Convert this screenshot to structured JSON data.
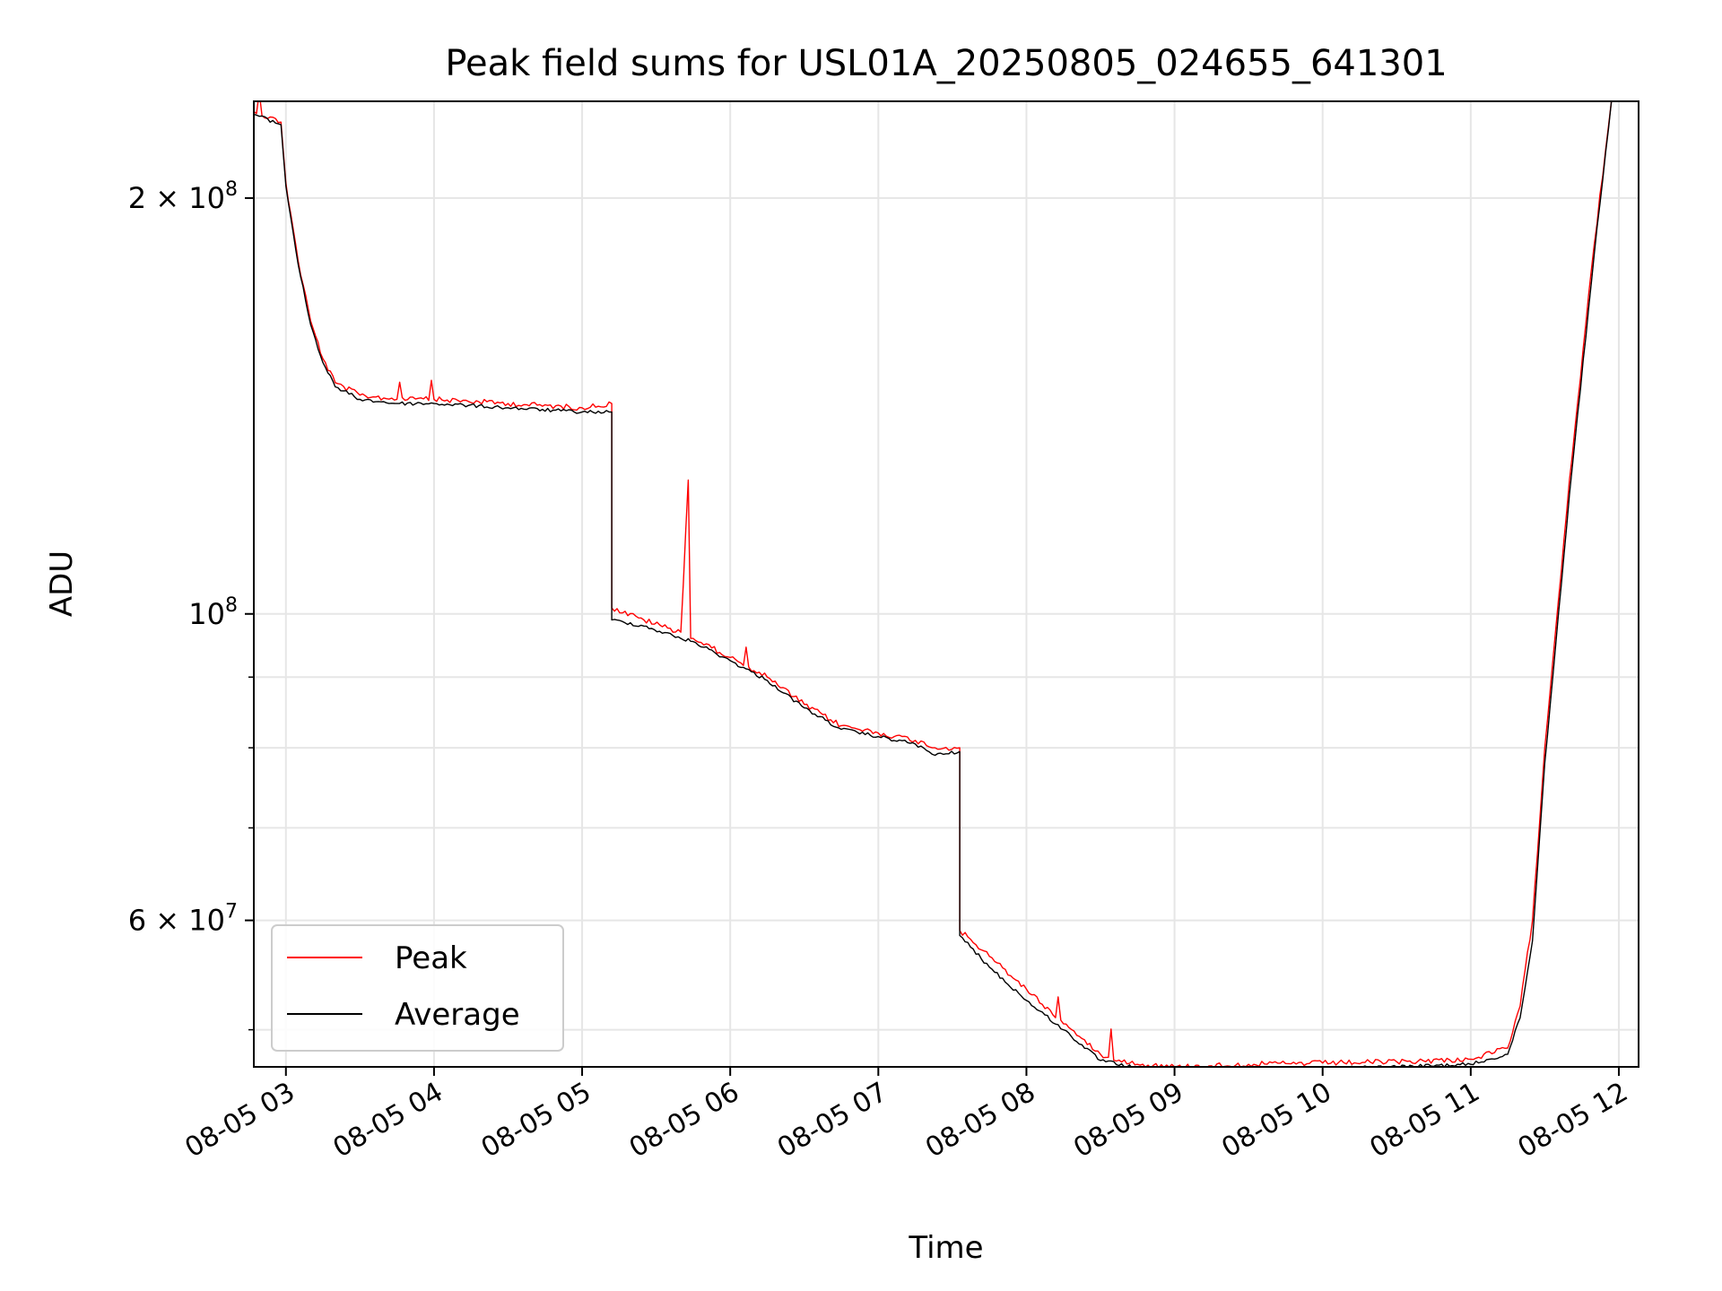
{
  "chart_data": {
    "type": "line",
    "title": "Peak field sums for USL01A_20250805_024655_641301",
    "xlabel": "Time",
    "ylabel": "ADU",
    "yscale": "log",
    "ylim": [
      47000000,
      235000000
    ],
    "xlim": [
      "2025-08-05 02:47",
      "2025-08-05 12:08"
    ],
    "grid": true,
    "legend_position": "lower-left",
    "x_ticks": [
      {
        "value": "2025-08-05 03:00",
        "label": "08-05 03"
      },
      {
        "value": "2025-08-05 04:00",
        "label": "08-05 04"
      },
      {
        "value": "2025-08-05 05:00",
        "label": "08-05 05"
      },
      {
        "value": "2025-08-05 06:00",
        "label": "08-05 06"
      },
      {
        "value": "2025-08-05 07:00",
        "label": "08-05 07"
      },
      {
        "value": "2025-08-05 08:00",
        "label": "08-05 08"
      },
      {
        "value": "2025-08-05 09:00",
        "label": "08-05 09"
      },
      {
        "value": "2025-08-05 10:00",
        "label": "08-05 10"
      },
      {
        "value": "2025-08-05 11:00",
        "label": "08-05 11"
      },
      {
        "value": "2025-08-05 12:00",
        "label": "08-05 12"
      }
    ],
    "y_major_ticks": [
      {
        "value": 60000000,
        "mantissa": "6",
        "exp": "7"
      },
      {
        "value": 100000000,
        "mantissa": "",
        "exp": "8"
      },
      {
        "value": 200000000,
        "mantissa": "2",
        "exp": "8"
      }
    ],
    "y_minor_ticks": [
      50000000,
      70000000,
      80000000,
      90000000
    ],
    "series": [
      {
        "name": "Peak",
        "color": "#ff0000",
        "x": [
          "2025-08-05 02:47",
          "2025-08-05 02:58",
          "2025-08-05 03:00",
          "2025-08-05 03:05",
          "2025-08-05 03:10",
          "2025-08-05 03:15",
          "2025-08-05 03:20",
          "2025-08-05 03:30",
          "2025-08-05 03:45",
          "2025-08-05 04:00",
          "2025-08-05 04:30",
          "2025-08-05 05:00",
          "2025-08-05 05:12",
          "2025-08-05 05:12",
          "2025-08-05 05:25",
          "2025-08-05 05:40",
          "2025-08-05 05:43",
          "2025-08-05 05:44",
          "2025-08-05 05:45",
          "2025-08-05 06:00",
          "2025-08-05 06:15",
          "2025-08-05 06:30",
          "2025-08-05 06:45",
          "2025-08-05 07:00",
          "2025-08-05 07:15",
          "2025-08-05 07:23",
          "2025-08-05 07:33",
          "2025-08-05 07:33",
          "2025-08-05 07:45",
          "2025-08-05 08:00",
          "2025-08-05 08:15",
          "2025-08-05 08:30",
          "2025-08-05 08:45",
          "2025-08-05 09:00",
          "2025-08-05 09:30",
          "2025-08-05 10:00",
          "2025-08-05 10:30",
          "2025-08-05 11:00",
          "2025-08-05 11:15",
          "2025-08-05 11:20",
          "2025-08-05 11:25",
          "2025-08-05 11:30",
          "2025-08-05 11:40",
          "2025-08-05 11:50",
          "2025-08-05 11:57"
        ],
        "values": [
          231000000,
          227000000,
          205000000,
          180000000,
          163000000,
          153000000,
          147000000,
          144000000,
          143000000,
          143000000,
          142000000,
          141000000,
          142000000,
          101000000,
          99000000,
          97000000,
          125000000,
          96000000,
          96000000,
          93000000,
          90000000,
          86000000,
          83000000,
          82000000,
          81000000,
          80000000,
          80000000,
          59000000,
          56500000,
          53500000,
          50500000,
          48000000,
          47200000,
          47000000,
          47200000,
          47300000,
          47400000,
          47600000,
          48500000,
          52000000,
          60000000,
          80000000,
          125000000,
          185000000,
          235000000
        ]
      },
      {
        "name": "Average",
        "color": "#000000",
        "x": [
          "2025-08-05 02:47",
          "2025-08-05 02:58",
          "2025-08-05 03:00",
          "2025-08-05 03:05",
          "2025-08-05 03:10",
          "2025-08-05 03:15",
          "2025-08-05 03:20",
          "2025-08-05 03:30",
          "2025-08-05 03:45",
          "2025-08-05 04:00",
          "2025-08-05 04:30",
          "2025-08-05 05:00",
          "2025-08-05 05:12",
          "2025-08-05 05:12",
          "2025-08-05 05:25",
          "2025-08-05 05:40",
          "2025-08-05 05:45",
          "2025-08-05 06:00",
          "2025-08-05 06:15",
          "2025-08-05 06:30",
          "2025-08-05 06:45",
          "2025-08-05 07:00",
          "2025-08-05 07:15",
          "2025-08-05 07:23",
          "2025-08-05 07:33",
          "2025-08-05 07:33",
          "2025-08-05 07:45",
          "2025-08-05 08:00",
          "2025-08-05 08:15",
          "2025-08-05 08:30",
          "2025-08-05 08:45",
          "2025-08-05 09:00",
          "2025-08-05 09:30",
          "2025-08-05 10:00",
          "2025-08-05 10:30",
          "2025-08-05 11:00",
          "2025-08-05 11:15",
          "2025-08-05 11:20",
          "2025-08-05 11:25",
          "2025-08-05 11:30",
          "2025-08-05 11:40",
          "2025-08-05 11:50",
          "2025-08-05 11:57"
        ],
        "values": [
          230000000,
          226000000,
          204000000,
          179000000,
          162000000,
          152000000,
          146000000,
          143000000,
          142000000,
          142000000,
          141000000,
          140000000,
          140000000,
          99000000,
          98000000,
          96000000,
          95500000,
          92500000,
          89500000,
          85500000,
          82500000,
          81500000,
          80500000,
          79000000,
          79500000,
          58500000,
          55500000,
          52500000,
          50000000,
          47500000,
          46900000,
          46800000,
          46800000,
          46900000,
          47000000,
          47200000,
          48000000,
          51000000,
          58000000,
          78000000,
          122000000,
          182000000,
          235000000
        ]
      }
    ]
  }
}
